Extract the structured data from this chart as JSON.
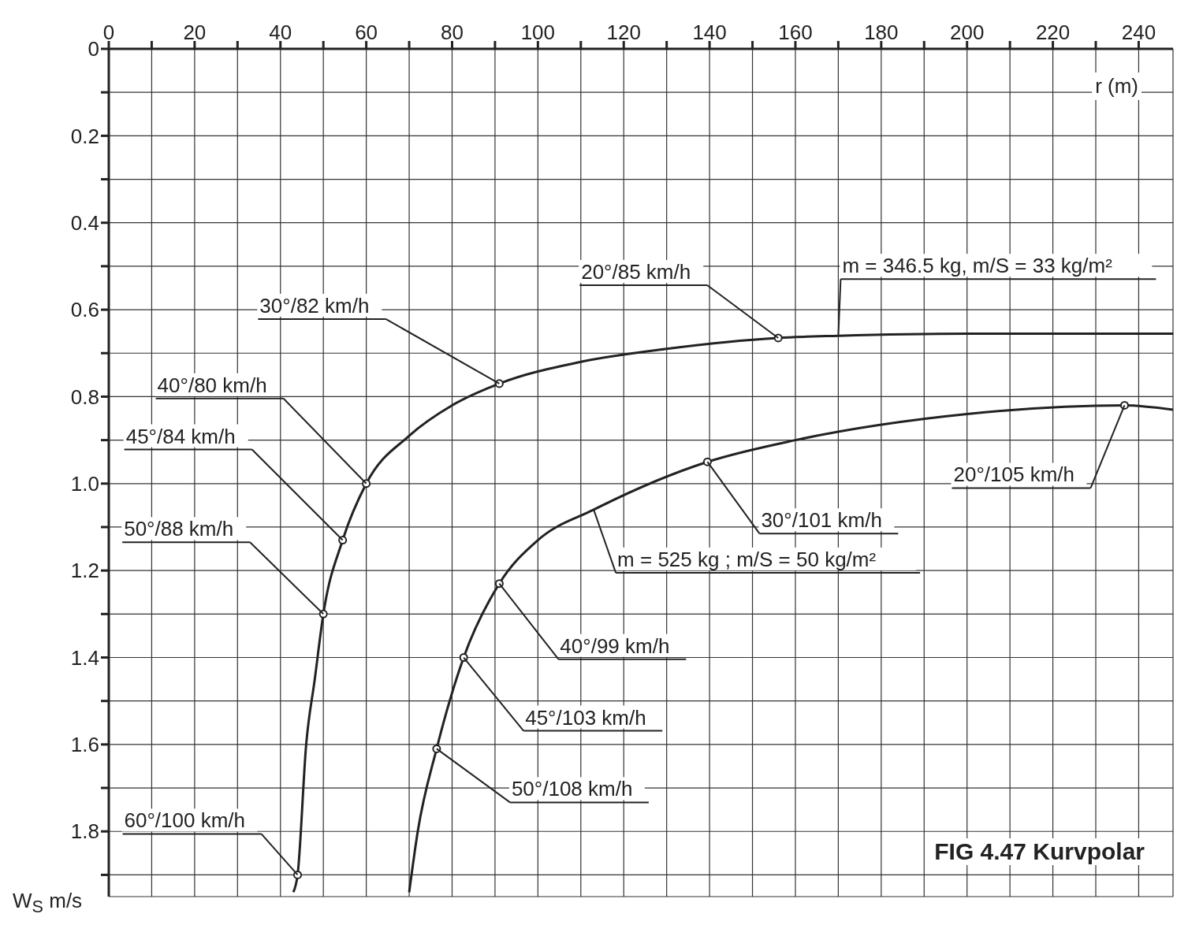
{
  "chart_data": {
    "type": "line",
    "xlabel": "r (m)",
    "ylabel": "W$_{S}$ m/s",
    "xlim": [
      0,
      248
    ],
    "ylim": [
      1.95,
      0
    ],
    "xticks": [
      0,
      {
        "value": 10,
        "label": null
      },
      20,
      {
        "value": 30,
        "label": null
      },
      40,
      {
        "value": 50,
        "label": null
      },
      60,
      {
        "value": 70,
        "label": null
      },
      80,
      {
        "value": 90,
        "label": null
      },
      100,
      {
        "value": 110,
        "label": null
      },
      120,
      {
        "value": 130,
        "label": null
      },
      140,
      {
        "value": 150,
        "label": null
      },
      160,
      {
        "value": 170,
        "label": null
      },
      180,
      {
        "value": 190,
        "label": null
      },
      200,
      {
        "value": 210,
        "label": null
      },
      220,
      {
        "value": 230,
        "label": null
      },
      240
    ],
    "yticks": [
      0,
      {
        "value": 0.1,
        "label": null
      },
      0.2,
      {
        "value": 0.3,
        "label": null
      },
      0.4,
      {
        "value": 0.5,
        "label": null
      },
      0.6,
      {
        "value": 0.7,
        "label": null
      },
      0.8,
      {
        "value": 0.9,
        "label": null
      },
      {
        "value": 1,
        "label": "1.0"
      },
      {
        "value": 1.1,
        "label": null
      },
      1.2,
      {
        "value": 1.3,
        "label": null
      },
      1.4,
      {
        "value": 1.5,
        "label": null
      },
      1.6,
      {
        "value": 1.7,
        "label": null
      },
      1.8,
      {
        "value": 1.9,
        "label": null
      }
    ],
    "grid": true,
    "legend": false,
    "line_style": "solid",
    "series": [
      {
        "name": "m = 346.5 kg, m/S = 33 kg/m²",
        "marker": "none",
        "color": "#222222",
        "x": [
          43,
          44,
          46,
          48,
          50,
          54.5,
          60,
          70,
          80,
          91,
          110,
          130,
          156,
          170,
          200,
          248
        ],
        "values": [
          1.94,
          1.9,
          1.6,
          1.45,
          1.3,
          1.13,
          1.0,
          0.89,
          0.82,
          0.77,
          0.72,
          0.69,
          0.665,
          0.66,
          0.655,
          0.655
        ]
      },
      {
        "name": "m = 525 kg ; m/S = 50 kg/m²",
        "marker": "none",
        "color": "#222222",
        "x": [
          70,
          72,
          76.4,
          82.7,
          91,
          100,
          113,
          139.5,
          160,
          200,
          236.7,
          248
        ],
        "values": [
          1.94,
          1.8,
          1.61,
          1.4,
          1.23,
          1.13,
          1.06,
          0.95,
          0.9,
          0.84,
          0.82,
          0.83
        ]
      },
      {
        "type": "scatter",
        "marker": "circle",
        "color": "#222222",
        "x": [
          44,
          50,
          54.5,
          60,
          91,
          156,
          76.4,
          82.7,
          91,
          139.5,
          236.7
        ],
        "values": [
          1.9,
          1.3,
          1.13,
          1.0,
          0.77,
          0.665,
          1.61,
          1.4,
          1.23,
          0.95,
          0.82
        ]
      }
    ],
    "annotations": [
      {
        "text": "60°/100 km/h",
        "x": 44,
        "y": 1.9
      },
      {
        "text": "50°/88 km/h",
        "x": 50,
        "y": 1.3
      },
      {
        "text": "45°/84 km/h",
        "x": 54.5,
        "y": 1.13
      },
      {
        "text": "40°/80 km/h",
        "x": 60,
        "y": 1.0
      },
      {
        "text": "30°/82 km/h",
        "x": 91,
        "y": 0.77
      },
      {
        "text": "20°/85 km/h",
        "x": 156,
        "y": 0.665
      },
      {
        "text": "50°/108 km/h",
        "x": 76.4,
        "y": 1.61
      },
      {
        "text": "45°/103 km/h",
        "x": 82.7,
        "y": 1.4
      },
      {
        "text": "40°/99 km/h",
        "x": 91,
        "y": 1.23
      },
      {
        "text": "30°/101 km/h",
        "x": 139.5,
        "y": 0.95
      },
      {
        "text": "20°/105 km/h",
        "x": 236.7,
        "y": 0.82
      },
      "FIG 4.47 Kurvpolar"
    ]
  }
}
